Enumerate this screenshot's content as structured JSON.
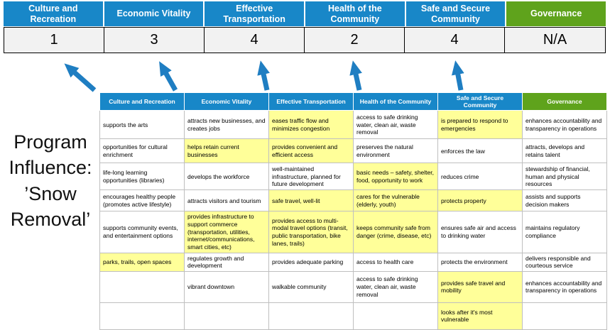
{
  "colors": {
    "blue": "#1887C8",
    "green": "#5FA31C",
    "highlight": "#FFFF99",
    "arrow": "#1F7EC2",
    "score_bg": "#F2F2F2"
  },
  "program_label": "Program Influence: ’Snow Removal’",
  "top": {
    "columns": [
      {
        "label": "Culture and Recreation",
        "score": "1",
        "color": "blue"
      },
      {
        "label": "Economic Vitality",
        "score": "3",
        "color": "blue"
      },
      {
        "label": "Effective Transportation",
        "score": "4",
        "color": "blue"
      },
      {
        "label": "Health of the Community",
        "score": "2",
        "color": "blue"
      },
      {
        "label": "Safe and Secure Community",
        "score": "4",
        "color": "blue"
      },
      {
        "label": "Governance",
        "score": "N/A",
        "color": "green"
      }
    ]
  },
  "matrix": {
    "headers": [
      "Culture and Recreation",
      "Economic Vitality",
      "Effective Transportation",
      "Health of the Community",
      "Safe and Secure Community",
      "Governance"
    ],
    "rows": [
      [
        {
          "text": "supports the arts",
          "highlight": false
        },
        {
          "text": "attracts new businesses, and creates jobs",
          "highlight": false
        },
        {
          "text": "eases traffic flow and minimizes congestion",
          "highlight": true
        },
        {
          "text": "access to safe drinking water, clean air, waste removal",
          "highlight": false
        },
        {
          "text": "is prepared to respond to emergencies",
          "highlight": true
        },
        {
          "text": "enhances accountability and transparency in operations",
          "highlight": false
        }
      ],
      [
        {
          "text": "opportunities for cultural enrichment",
          "highlight": false
        },
        {
          "text": "helps retain current businesses",
          "highlight": true
        },
        {
          "text": "provides convenient and efficient access",
          "highlight": true
        },
        {
          "text": "preserves the natural environment",
          "highlight": false
        },
        {
          "text": "enforces the law",
          "highlight": false
        },
        {
          "text": "attracts, develops and retains talent",
          "highlight": false
        }
      ],
      [
        {
          "text": "life-long learning opportunities (libraries)",
          "highlight": false
        },
        {
          "text": "develops the workforce",
          "highlight": false
        },
        {
          "text": "well-maintained infrastructure, planned for future development",
          "highlight": false
        },
        {
          "text": "basic needs – safety, shelter, food, opportunity to work",
          "highlight": true
        },
        {
          "text": "reduces crime",
          "highlight": false
        },
        {
          "text": "stewardship of financial, human and physical resources",
          "highlight": false
        }
      ],
      [
        {
          "text": "encourages healthy people (promotes active lifestyle)",
          "highlight": false
        },
        {
          "text": "attracts visitors and tourism",
          "highlight": false
        },
        {
          "text": "safe travel, well-lit",
          "highlight": true
        },
        {
          "text": "cares for the vulnerable (elderly, youth)",
          "highlight": true
        },
        {
          "text": "protects property",
          "highlight": true
        },
        {
          "text": "assists and supports decision makers",
          "highlight": false
        }
      ],
      [
        {
          "text": "supports community events, and entertainment options",
          "highlight": false
        },
        {
          "text": "provides infrastructure to support commerce (transportation, utilities, internet/communications, smart cities, etc)",
          "highlight": true
        },
        {
          "text": "provides access to multi-modal travel options (transit, public transportation, bike lanes, trails)",
          "highlight": true
        },
        {
          "text": "keeps community safe from danger (crime, disease, etc)",
          "highlight": true
        },
        {
          "text": "ensures safe air and access to drinking water",
          "highlight": false
        },
        {
          "text": "maintains regulatory compliance",
          "highlight": false
        }
      ],
      [
        {
          "text": "parks, trails, open spaces",
          "highlight": true
        },
        {
          "text": "regulates growth and development",
          "highlight": false
        },
        {
          "text": "provides adequate parking",
          "highlight": false
        },
        {
          "text": "access to health care",
          "highlight": false
        },
        {
          "text": "protects the environment",
          "highlight": false
        },
        {
          "text": "delivers responsible and courteous service",
          "highlight": false
        }
      ],
      [
        {
          "text": "",
          "highlight": false
        },
        {
          "text": "vibrant downtown",
          "highlight": false
        },
        {
          "text": "walkable community",
          "highlight": false
        },
        {
          "text": "access to safe drinking water, clean air, waste removal",
          "highlight": false
        },
        {
          "text": "provides safe travel and mobility",
          "highlight": true
        },
        {
          "text": "enhances accountability and transparency in operations",
          "highlight": false
        }
      ],
      [
        {
          "text": "",
          "highlight": false
        },
        {
          "text": "",
          "highlight": false
        },
        {
          "text": "",
          "highlight": false
        },
        {
          "text": "",
          "highlight": false
        },
        {
          "text": "looks after it's most vulnerable",
          "highlight": true
        },
        {
          "text": "",
          "highlight": false
        }
      ]
    ]
  }
}
